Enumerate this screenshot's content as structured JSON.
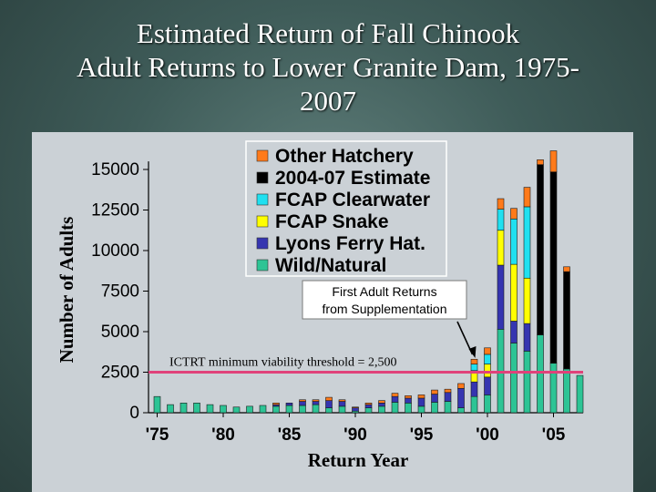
{
  "slide": {
    "title_lines": [
      "Estimated Return of Fall Chinook",
      "Adult Returns to Lower Granite Dam, 1975-",
      "2007"
    ]
  },
  "colors": {
    "wild": "#2dc495",
    "lyons": "#3535b0",
    "snake": "#ffff00",
    "clearwater": "#20e0f0",
    "estimate": "#000000",
    "other": "#ff7a1a",
    "threshold": "#e0427a"
  },
  "chart_data": {
    "type": "bar",
    "stacked": true,
    "title": "",
    "xlabel": "Return Year",
    "ylabel": "Number of Adults",
    "ylim": [
      0,
      15500
    ],
    "yticks": [
      0,
      2500,
      5000,
      7500,
      10000,
      12500,
      15000
    ],
    "ytick_labels": [
      "0",
      "2500",
      "5000",
      "7500",
      "10000",
      "12500",
      "15000"
    ],
    "xtick_labels": [
      {
        "year": 1975,
        "label": "'75"
      },
      {
        "year": 1980,
        "label": "'80"
      },
      {
        "year": 1985,
        "label": "'85"
      },
      {
        "year": 1990,
        "label": "'90"
      },
      {
        "year": 1995,
        "label": "'95"
      },
      {
        "year": 2000,
        "label": "'00"
      },
      {
        "year": 2005,
        "label": "'05"
      }
    ],
    "categories": [
      1975,
      1976,
      1977,
      1978,
      1979,
      1980,
      1981,
      1982,
      1983,
      1984,
      1985,
      1986,
      1987,
      1988,
      1989,
      1990,
      1991,
      1992,
      1993,
      1994,
      1995,
      1996,
      1997,
      1998,
      1999,
      2000,
      2001,
      2002,
      2003,
      2004,
      2005,
      2006,
      2007
    ],
    "series": [
      {
        "name": "Wild/Natural",
        "color_key": "wild",
        "values": [
          1000,
          500,
          600,
          600,
          500,
          450,
          350,
          400,
          450,
          400,
          450,
          450,
          500,
          300,
          400,
          100,
          300,
          400,
          650,
          600,
          400,
          650,
          700,
          300,
          1000,
          1100,
          5150,
          4300,
          3800,
          4800,
          3050,
          2700,
          2300
        ]
      },
      {
        "name": "Lyons Ferry Hat.",
        "color_key": "lyons",
        "values": [
          0,
          0,
          0,
          0,
          0,
          0,
          0,
          0,
          0,
          100,
          150,
          250,
          200,
          450,
          300,
          200,
          200,
          200,
          350,
          300,
          500,
          500,
          550,
          1200,
          900,
          1100,
          3950,
          1350,
          1700,
          0,
          0,
          0,
          0
        ]
      },
      {
        "name": "FCAP Snake",
        "color_key": "snake",
        "values": [
          0,
          0,
          0,
          0,
          0,
          0,
          0,
          0,
          0,
          0,
          0,
          0,
          0,
          0,
          0,
          0,
          0,
          0,
          0,
          0,
          0,
          0,
          0,
          0,
          700,
          800,
          2150,
          3500,
          2800,
          0,
          0,
          0,
          0
        ]
      },
      {
        "name": "FCAP Clearwater",
        "color_key": "clearwater",
        "values": [
          0,
          0,
          0,
          0,
          0,
          0,
          0,
          0,
          0,
          0,
          0,
          0,
          0,
          0,
          0,
          0,
          0,
          0,
          0,
          0,
          0,
          0,
          0,
          0,
          400,
          600,
          1300,
          2800,
          4400,
          0,
          0,
          0,
          0
        ]
      },
      {
        "name": "2004-07 Estimate",
        "color_key": "estimate",
        "values": [
          0,
          0,
          0,
          0,
          0,
          0,
          0,
          0,
          0,
          0,
          0,
          0,
          0,
          0,
          0,
          0,
          0,
          0,
          0,
          0,
          0,
          0,
          0,
          0,
          0,
          0,
          0,
          0,
          0,
          10500,
          11800,
          6000,
          0
        ]
      },
      {
        "name": "Other Hatchery",
        "color_key": "other",
        "values": [
          0,
          0,
          0,
          0,
          0,
          0,
          0,
          0,
          0,
          100,
          0,
          100,
          100,
          200,
          100,
          50,
          100,
          150,
          200,
          150,
          200,
          250,
          200,
          300,
          300,
          400,
          650,
          650,
          1200,
          300,
          1300,
          300,
          0
        ]
      }
    ],
    "legend_order": [
      "Other Hatchery",
      "2004-07 Estimate",
      "FCAP Clearwater",
      "FCAP Snake",
      "Lyons Ferry Hat.",
      "Wild/Natural"
    ],
    "legend_position": "top-center",
    "reference_line": {
      "value": 2500,
      "label": "ICTRT minimum viability threshold = 2,500"
    },
    "annotation": {
      "lines": [
        "First Adult Returns",
        "from Supplementation"
      ],
      "points_to_year": 1999
    }
  }
}
